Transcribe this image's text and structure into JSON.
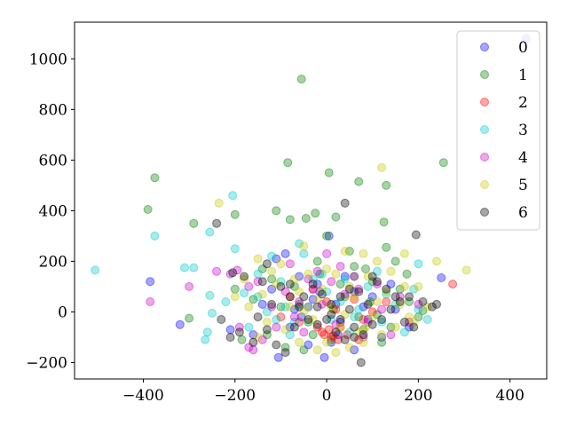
{
  "chart_data": {
    "type": "scatter",
    "xlim": [
      -550,
      480
    ],
    "ylim": [
      -265,
      1145
    ],
    "xticks": [
      -400,
      -200,
      0,
      200,
      400
    ],
    "yticks": [
      -200,
      0,
      200,
      400,
      600,
      800,
      1000
    ],
    "xtick_labels": [
      "−400",
      "−200",
      "0",
      "200",
      "400"
    ],
    "ytick_labels": [
      "−200",
      "0",
      "200",
      "400",
      "600",
      "800",
      "1000"
    ],
    "grid": false,
    "legend_position": "upper right",
    "alpha": 0.35,
    "series": [
      {
        "name": "0",
        "color": "#0000ff",
        "points": [
          [
            435,
            1080
          ],
          [
            -385,
            120
          ],
          [
            -320,
            -50
          ],
          [
            -210,
            -70
          ],
          [
            -105,
            -180
          ],
          [
            -90,
            230
          ],
          [
            -110,
            210
          ],
          [
            5,
            300
          ],
          [
            -5,
            -180
          ],
          [
            250,
            135
          ],
          [
            10,
            -120
          ],
          [
            60,
            80
          ],
          [
            -30,
            50
          ],
          [
            -55,
            -20
          ],
          [
            30,
            -40
          ],
          [
            -140,
            30
          ],
          [
            -160,
            -90
          ],
          [
            120,
            -100
          ],
          [
            100,
            60
          ],
          [
            80,
            20
          ],
          [
            40,
            140
          ],
          [
            -20,
            110
          ],
          [
            -70,
            10
          ],
          [
            150,
            10
          ],
          [
            180,
            -60
          ],
          [
            -40,
            -130
          ],
          [
            20,
            30
          ],
          [
            -120,
            90
          ],
          [
            -80,
            -60
          ],
          [
            60,
            -150
          ],
          [
            140,
            110
          ],
          [
            -15,
            80
          ],
          [
            25,
            -90
          ],
          [
            -60,
            140
          ],
          [
            90,
            -30
          ]
        ]
      },
      {
        "name": "1",
        "color": "#008000",
        "points": [
          [
            -55,
            920
          ],
          [
            -85,
            590
          ],
          [
            5,
            550
          ],
          [
            70,
            515
          ],
          [
            -375,
            530
          ],
          [
            -390,
            405
          ],
          [
            -290,
            350
          ],
          [
            -200,
            385
          ],
          [
            -110,
            400
          ],
          [
            -80,
            365
          ],
          [
            -45,
            370
          ],
          [
            -25,
            390
          ],
          [
            20,
            375
          ],
          [
            0,
            300
          ],
          [
            130,
            500
          ],
          [
            125,
            355
          ],
          [
            -300,
            -25
          ],
          [
            -185,
            -110
          ],
          [
            -130,
            -90
          ],
          [
            -90,
            -140
          ],
          [
            -50,
            -150
          ],
          [
            60,
            180
          ],
          [
            130,
            255
          ],
          [
            150,
            200
          ],
          [
            180,
            40
          ],
          [
            210,
            5
          ],
          [
            -20,
            200
          ],
          [
            40,
            60
          ],
          [
            -60,
            30
          ],
          [
            80,
            -70
          ],
          [
            100,
            120
          ],
          [
            -140,
            170
          ],
          [
            -160,
            50
          ],
          [
            -40,
            -40
          ],
          [
            10,
            -110
          ],
          [
            120,
            -120
          ],
          [
            160,
            90
          ],
          [
            200,
            -20
          ],
          [
            -100,
            20
          ],
          [
            50,
            240
          ],
          [
            -15,
            150
          ],
          [
            30,
            110
          ],
          [
            70,
            -20
          ],
          [
            -70,
            100
          ],
          [
            95,
            40
          ],
          [
            140,
            -60
          ],
          [
            -120,
            130
          ],
          [
            -30,
            -90
          ],
          [
            15,
            10
          ],
          [
            60,
            140
          ],
          [
            110,
            -10
          ],
          [
            -200,
            90
          ],
          [
            255,
            590
          ],
          [
            175,
            150
          ],
          [
            85,
            170
          ]
        ]
      },
      {
        "name": "2",
        "color": "#ff0000",
        "points": [
          [
            275,
            110
          ],
          [
            -10,
            -80
          ],
          [
            15,
            -95
          ],
          [
            25,
            -110
          ],
          [
            -5,
            -90
          ],
          [
            5,
            -70
          ],
          [
            30,
            -60
          ],
          [
            -20,
            -60
          ],
          [
            45,
            -90
          ],
          [
            10,
            -100
          ],
          [
            60,
            50
          ],
          [
            -40,
            20
          ],
          [
            -60,
            -40
          ],
          [
            80,
            -30
          ],
          [
            20,
            10
          ],
          [
            100,
            0
          ],
          [
            -80,
            60
          ],
          [
            -100,
            -20
          ],
          [
            130,
            40
          ],
          [
            0,
            40
          ],
          [
            70,
            -110
          ],
          [
            -30,
            90
          ]
        ]
      },
      {
        "name": "3",
        "color": "#00c8c8",
        "points": [
          [
            -505,
            165
          ],
          [
            -375,
            300
          ],
          [
            -205,
            460
          ],
          [
            -255,
            315
          ],
          [
            -200,
            250
          ],
          [
            -290,
            175
          ],
          [
            -255,
            65
          ],
          [
            -265,
            -110
          ],
          [
            -260,
            -80
          ],
          [
            -250,
            -5
          ],
          [
            -310,
            175
          ],
          [
            -180,
            75
          ],
          [
            -150,
            60
          ],
          [
            -120,
            220
          ],
          [
            -90,
            20
          ],
          [
            -70,
            -40
          ],
          [
            -60,
            270
          ],
          [
            -50,
            230
          ],
          [
            -30,
            130
          ],
          [
            0,
            80
          ],
          [
            30,
            40
          ],
          [
            60,
            -20
          ],
          [
            90,
            100
          ],
          [
            120,
            -40
          ],
          [
            150,
            30
          ],
          [
            190,
            90
          ],
          [
            200,
            190
          ],
          [
            200,
            10
          ],
          [
            220,
            -30
          ],
          [
            -220,
            40
          ],
          [
            -170,
            -60
          ],
          [
            -130,
            0
          ],
          [
            -100,
            120
          ],
          [
            -40,
            20
          ],
          [
            10,
            -30
          ],
          [
            40,
            130
          ],
          [
            70,
            10
          ],
          [
            110,
            160
          ],
          [
            -80,
            -90
          ],
          [
            170,
            -80
          ],
          [
            -150,
            150
          ],
          [
            -10,
            150
          ],
          [
            50,
            -80
          ],
          [
            130,
            70
          ],
          [
            -110,
            -30
          ]
        ]
      },
      {
        "name": "4",
        "color": "#c800c8",
        "points": [
          [
            -385,
            40
          ],
          [
            -300,
            100
          ],
          [
            -240,
            160
          ],
          [
            -210,
            150
          ],
          [
            -195,
            165
          ],
          [
            -170,
            100
          ],
          [
            -150,
            120
          ],
          [
            -160,
            -150
          ],
          [
            -170,
            -140
          ],
          [
            -140,
            -110
          ],
          [
            -110,
            -60
          ],
          [
            -90,
            80
          ],
          [
            -80,
            190
          ],
          [
            -60,
            40
          ],
          [
            -30,
            90
          ],
          [
            -20,
            160
          ],
          [
            10,
            120
          ],
          [
            40,
            70
          ],
          [
            60,
            140
          ],
          [
            90,
            -40
          ],
          [
            120,
            10
          ],
          [
            160,
            60
          ],
          [
            180,
            -40
          ],
          [
            -50,
            -80
          ],
          [
            -10,
            30
          ],
          [
            20,
            -50
          ],
          [
            70,
            90
          ],
          [
            110,
            110
          ],
          [
            -120,
            20
          ],
          [
            -190,
            -60
          ],
          [
            140,
            -90
          ],
          [
            -70,
            -20
          ],
          [
            30,
            180
          ],
          [
            200,
            30
          ],
          [
            -40,
            130
          ],
          [
            80,
            -100
          ],
          [
            0,
            230
          ]
        ]
      },
      {
        "name": "5",
        "color": "#c8c800",
        "points": [
          [
            -235,
            430
          ],
          [
            120,
            570
          ],
          [
            -50,
            260
          ],
          [
            -150,
            210
          ],
          [
            -100,
            190
          ],
          [
            -40,
            150
          ],
          [
            0,
            170
          ],
          [
            40,
            240
          ],
          [
            80,
            230
          ],
          [
            110,
            200
          ],
          [
            170,
            230
          ],
          [
            240,
            200
          ],
          [
            305,
            165
          ],
          [
            180,
            -20
          ],
          [
            150,
            -60
          ],
          [
            120,
            -90
          ],
          [
            80,
            -120
          ],
          [
            50,
            -140
          ],
          [
            20,
            -160
          ],
          [
            -20,
            -150
          ],
          [
            -60,
            -120
          ],
          [
            -90,
            -70
          ],
          [
            -130,
            -40
          ],
          [
            -170,
            20
          ],
          [
            -200,
            60
          ],
          [
            -110,
            110
          ],
          [
            -60,
            80
          ],
          [
            -20,
            50
          ],
          [
            10,
            20
          ],
          [
            40,
            -10
          ],
          [
            60,
            60
          ],
          [
            90,
            140
          ],
          [
            130,
            80
          ],
          [
            160,
            30
          ],
          [
            190,
            -40
          ],
          [
            -80,
            20
          ],
          [
            -30,
            -30
          ],
          [
            30,
            -60
          ],
          [
            70,
            -80
          ],
          [
            100,
            -20
          ],
          [
            -150,
            -100
          ],
          [
            200,
            100
          ],
          [
            220,
            20
          ],
          [
            -50,
            0
          ],
          [
            0,
            -120
          ],
          [
            140,
            160
          ],
          [
            -120,
            160
          ],
          [
            50,
            100
          ],
          [
            -10,
            90
          ],
          [
            20,
            150
          ],
          [
            110,
            40
          ],
          [
            -180,
            130
          ],
          [
            -140,
            70
          ],
          [
            170,
            100
          ],
          [
            85,
            -60
          ],
          [
            -70,
            130
          ]
        ]
      },
      {
        "name": "6",
        "color": "#000000",
        "points": [
          [
            40,
            430
          ],
          [
            -240,
            350
          ],
          [
            195,
            305
          ],
          [
            -205,
            155
          ],
          [
            -180,
            140
          ],
          [
            -140,
            120
          ],
          [
            -130,
            190
          ],
          [
            -100,
            100
          ],
          [
            -80,
            60
          ],
          [
            -60,
            20
          ],
          [
            -40,
            -30
          ],
          [
            -20,
            -50
          ],
          [
            0,
            -30
          ],
          [
            20,
            -80
          ],
          [
            40,
            -110
          ],
          [
            60,
            -100
          ],
          [
            80,
            -90
          ],
          [
            100,
            -50
          ],
          [
            120,
            -30
          ],
          [
            140,
            10
          ],
          [
            160,
            40
          ],
          [
            180,
            60
          ],
          [
            210,
            40
          ],
          [
            230,
            20
          ],
          [
            240,
            30
          ],
          [
            -230,
            -30
          ],
          [
            -210,
            -100
          ],
          [
            -190,
            -80
          ],
          [
            -160,
            -120
          ],
          [
            -150,
            -20
          ],
          [
            -130,
            -70
          ],
          [
            -110,
            -130
          ],
          [
            -90,
            -160
          ],
          [
            -70,
            -60
          ],
          [
            -50,
            60
          ],
          [
            -30,
            110
          ],
          [
            -10,
            70
          ],
          [
            10,
            30
          ],
          [
            30,
            60
          ],
          [
            50,
            10
          ],
          [
            70,
            80
          ],
          [
            90,
            30
          ],
          [
            110,
            120
          ],
          [
            130,
            90
          ],
          [
            150,
            60
          ],
          [
            170,
            -40
          ],
          [
            190,
            -60
          ],
          [
            75,
            -200
          ],
          [
            10,
            -10
          ],
          [
            -20,
            20
          ],
          [
            30,
            -30
          ],
          [
            60,
            -60
          ],
          [
            100,
            140
          ],
          [
            -80,
            110
          ],
          [
            -120,
            30
          ],
          [
            50,
            90
          ]
        ]
      }
    ]
  }
}
